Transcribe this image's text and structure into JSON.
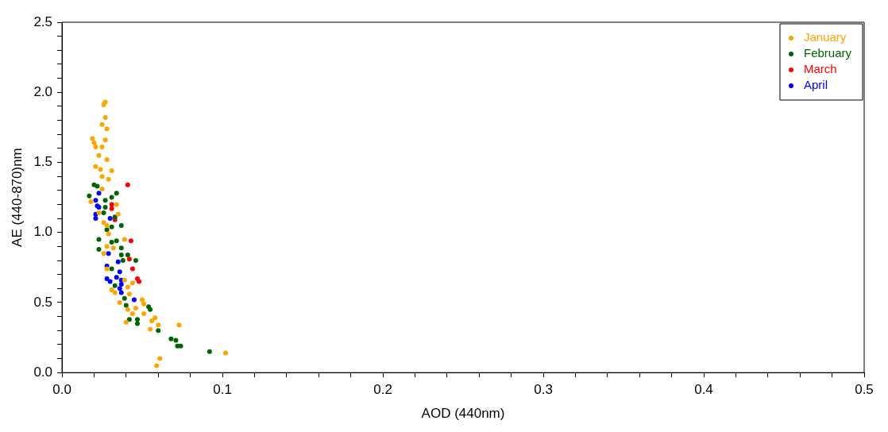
{
  "chart_data": {
    "type": "scatter",
    "xlabel": "AOD (440nm)",
    "ylabel": "AE (440-870)nm",
    "xlim": [
      0,
      0.5
    ],
    "ylim": [
      0,
      2.5
    ],
    "xticks": [
      {
        "value": 0,
        "label": "0.0"
      },
      {
        "value": 0.02,
        "label": null
      },
      {
        "value": 0.04,
        "label": null
      },
      {
        "value": 0.06,
        "label": null
      },
      {
        "value": 0.08,
        "label": null
      },
      {
        "value": 0.1,
        "label": "0.1"
      },
      {
        "value": 0.12,
        "label": null
      },
      {
        "value": 0.14,
        "label": null
      },
      {
        "value": 0.16,
        "label": null
      },
      {
        "value": 0.18,
        "label": null
      },
      {
        "value": 0.2,
        "label": "0.2"
      },
      {
        "value": 0.22,
        "label": null
      },
      {
        "value": 0.24,
        "label": null
      },
      {
        "value": 0.26,
        "label": null
      },
      {
        "value": 0.28,
        "label": null
      },
      {
        "value": 0.3,
        "label": "0.3"
      },
      {
        "value": 0.32,
        "label": null
      },
      {
        "value": 0.34,
        "label": null
      },
      {
        "value": 0.36,
        "label": null
      },
      {
        "value": 0.38,
        "label": null
      },
      {
        "value": 0.4,
        "label": "0.4"
      },
      {
        "value": 0.42,
        "label": null
      },
      {
        "value": 0.44,
        "label": null
      },
      {
        "value": 0.46,
        "label": null
      },
      {
        "value": 0.48,
        "label": null
      },
      {
        "value": 0.5,
        "label": "0.5"
      }
    ],
    "yticks": [
      {
        "value": 0,
        "label": "0.0"
      },
      {
        "value": 0.1,
        "label": null
      },
      {
        "value": 0.2,
        "label": null
      },
      {
        "value": 0.3,
        "label": null
      },
      {
        "value": 0.4,
        "label": null
      },
      {
        "value": 0.5,
        "label": "0.5"
      },
      {
        "value": 0.6,
        "label": null
      },
      {
        "value": 0.7,
        "label": null
      },
      {
        "value": 0.8,
        "label": null
      },
      {
        "value": 0.9,
        "label": null
      },
      {
        "value": 1,
        "label": "1.0"
      },
      {
        "value": 1.1,
        "label": null
      },
      {
        "value": 1.2,
        "label": null
      },
      {
        "value": 1.3,
        "label": null
      },
      {
        "value": 1.4,
        "label": null
      },
      {
        "value": 1.5,
        "label": "1.5"
      },
      {
        "value": 1.6,
        "label": null
      },
      {
        "value": 1.7,
        "label": null
      },
      {
        "value": 1.8,
        "label": null
      },
      {
        "value": 1.9,
        "label": null
      },
      {
        "value": 2,
        "label": "2.0"
      },
      {
        "value": 2.1,
        "label": null
      },
      {
        "value": 2.2,
        "label": null
      },
      {
        "value": 2.3,
        "label": null
      },
      {
        "value": 2.4,
        "label": null
      },
      {
        "value": 2.5,
        "label": "2.5"
      }
    ],
    "grid": false,
    "legend": "top right",
    "marker": "circle",
    "series": [
      {
        "name": "January",
        "color": "#ffa500",
        "x": [
          0.027,
          0.026,
          0.027,
          0.025,
          0.028,
          0.019,
          0.02,
          0.027,
          0.025,
          0.021,
          0.023,
          0.028,
          0.021,
          0.024,
          0.031,
          0.025,
          0.029,
          0.025,
          0.018,
          0.034,
          0.035,
          0.023,
          0.026,
          0.028,
          0.029,
          0.039,
          0.028,
          0.032,
          0.026,
          0.028,
          0.031,
          0.033,
          0.039,
          0.041,
          0.044,
          0.042,
          0.036,
          0.041,
          0.046,
          0.05,
          0.051,
          0.044,
          0.051,
          0.04,
          0.056,
          0.058,
          0.06,
          0.055,
          0.073,
          0.102,
          0.061,
          0.059
        ],
        "values": [
          1.93,
          1.91,
          1.82,
          1.77,
          1.74,
          1.67,
          1.64,
          1.66,
          1.61,
          1.61,
          1.55,
          1.52,
          1.47,
          1.45,
          1.44,
          1.4,
          1.38,
          1.31,
          1.22,
          1.2,
          1.13,
          1.14,
          1.07,
          1.05,
          0.99,
          0.95,
          0.9,
          0.89,
          0.85,
          0.74,
          0.59,
          0.57,
          0.66,
          0.61,
          0.64,
          0.56,
          0.5,
          0.45,
          0.46,
          0.52,
          0.49,
          0.42,
          0.42,
          0.36,
          0.37,
          0.39,
          0.34,
          0.31,
          0.34,
          0.14,
          0.1,
          0.05
        ]
      },
      {
        "name": "February",
        "color": "#006400",
        "x": [
          0.02,
          0.022,
          0.017,
          0.034,
          0.031,
          0.027,
          0.027,
          0.026,
          0.033,
          0.037,
          0.028,
          0.031,
          0.023,
          0.023,
          0.031,
          0.034,
          0.037,
          0.037,
          0.041,
          0.038,
          0.046,
          0.031,
          0.033,
          0.039,
          0.04,
          0.054,
          0.055,
          0.042,
          0.047,
          0.047,
          0.06,
          0.068,
          0.071,
          0.072,
          0.074,
          0.092
        ],
        "values": [
          1.34,
          1.33,
          1.26,
          1.28,
          1.25,
          1.23,
          1.18,
          1.14,
          1.11,
          1.05,
          1.02,
          1.04,
          0.95,
          0.88,
          0.93,
          0.94,
          0.89,
          0.84,
          0.84,
          0.8,
          0.8,
          0.74,
          0.62,
          0.53,
          0.48,
          0.47,
          0.45,
          0.38,
          0.38,
          0.35,
          0.3,
          0.24,
          0.23,
          0.19,
          0.19,
          0.15
        ]
      },
      {
        "name": "March",
        "color": "#ff0000",
        "x": [
          0.041,
          0.031,
          0.031,
          0.033,
          0.043,
          0.042,
          0.044,
          0.047,
          0.048
        ],
        "values": [
          1.34,
          1.2,
          1.17,
          1.09,
          0.94,
          0.81,
          0.74,
          0.67,
          0.65
        ]
      },
      {
        "name": "April",
        "color": "#0000ff",
        "x": [
          0.023,
          0.021,
          0.022,
          0.023,
          0.021,
          0.021,
          0.03,
          0.029,
          0.028,
          0.035,
          0.036,
          0.028,
          0.03,
          0.034,
          0.037,
          0.036,
          0.037,
          0.037,
          0.045
        ],
        "values": [
          1.28,
          1.23,
          1.19,
          1.18,
          1.13,
          1.1,
          1.1,
          0.85,
          0.76,
          0.79,
          0.72,
          0.67,
          0.65,
          0.68,
          0.66,
          0.6,
          0.57,
          0.63,
          0.52
        ]
      }
    ]
  }
}
